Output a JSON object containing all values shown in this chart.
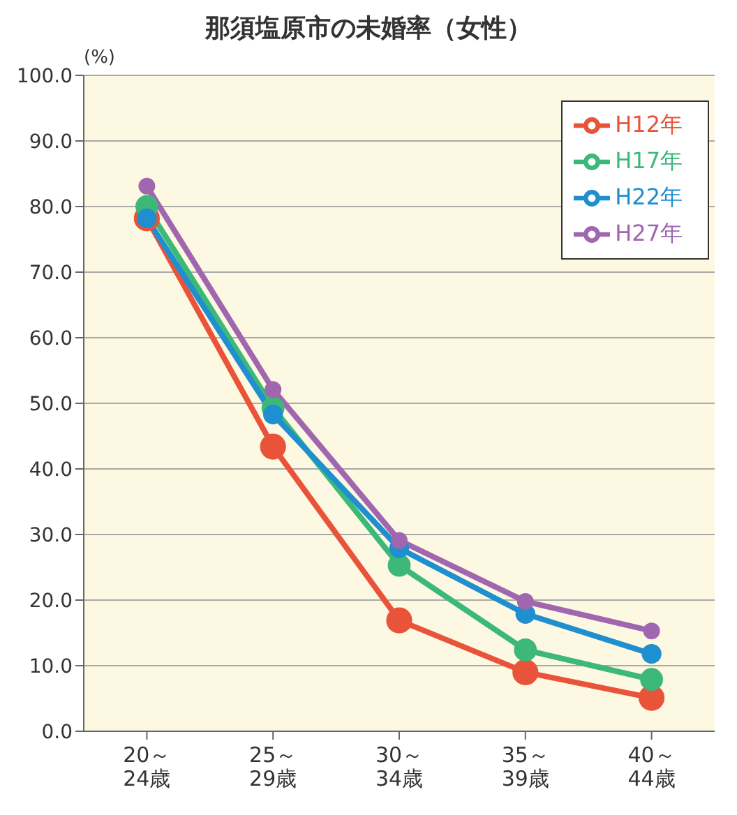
{
  "chart_data": {
    "type": "line",
    "title": "那須塩原市の未婚率（女性）",
    "ylabel": "(%)",
    "categories": [
      "20～\n24歳",
      "25～\n29歳",
      "30～\n34歳",
      "35～\n39歳",
      "40～\n44歳"
    ],
    "series": [
      {
        "name": "H12年",
        "color": "#e8533a",
        "values": [
          78.2,
          43.4,
          16.9,
          9.0,
          5.1
        ]
      },
      {
        "name": "H17年",
        "color": "#3cb878",
        "values": [
          80.0,
          49.3,
          25.3,
          12.4,
          7.9
        ]
      },
      {
        "name": "H22年",
        "color": "#1f8fcf",
        "values": [
          78.2,
          48.3,
          27.9,
          17.9,
          11.8
        ]
      },
      {
        "name": "H27年",
        "color": "#a066b0",
        "values": [
          83.1,
          52.1,
          29.1,
          19.8,
          15.3
        ]
      }
    ],
    "ylim": [
      0,
      100
    ],
    "yticks": [
      {
        "value": 0,
        "label": "0.0"
      },
      {
        "value": 10,
        "label": "10.0"
      },
      {
        "value": 20,
        "label": "20.0"
      },
      {
        "value": 30,
        "label": "30.0"
      },
      {
        "value": 40,
        "label": "40.0"
      },
      {
        "value": 50,
        "label": "50.0"
      },
      {
        "value": 60,
        "label": "60.0"
      },
      {
        "value": 70,
        "label": "70.0"
      },
      {
        "value": 80,
        "label": "80.0"
      },
      {
        "value": 90,
        "label": "90.0"
      },
      {
        "value": 100,
        "label": "100.0"
      }
    ],
    "grid": "y",
    "legend": "top right",
    "marker": "circle",
    "line_style": "solid"
  }
}
